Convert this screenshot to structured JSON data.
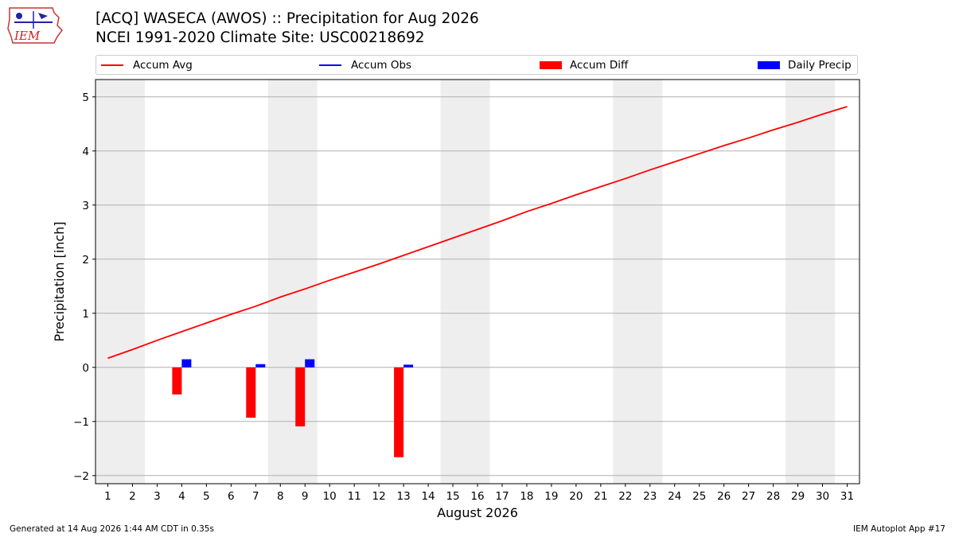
{
  "header": {
    "title_line1": "[ACQ] WASECA (AWOS) :: Precipitation for Aug 2026",
    "title_line2": "NCEI 1991-2020 Climate Site: USC00218692",
    "logo_text": "IEM"
  },
  "legend": {
    "items": [
      {
        "label": "Accum Avg",
        "kind": "line",
        "color": "#ff0000"
      },
      {
        "label": "Accum Obs",
        "kind": "line",
        "color": "#0000ff"
      },
      {
        "label": "Accum Diff",
        "kind": "box",
        "color": "#ff0000"
      },
      {
        "label": "Daily Precip",
        "kind": "box",
        "color": "#0000ff"
      }
    ]
  },
  "footer": {
    "generated": "Generated at 14 Aug 2026 1:44 AM CDT in 0.35s",
    "app": "IEM Autoplot App #17"
  },
  "chart_data": {
    "type": "bar",
    "title": "[ACQ] WASECA (AWOS) :: Precipitation for Aug 2026",
    "xlabel": "August 2026",
    "ylabel": "Precipitation [inch]",
    "x": [
      1,
      2,
      3,
      4,
      5,
      6,
      7,
      8,
      9,
      10,
      11,
      12,
      13,
      14,
      15,
      16,
      17,
      18,
      19,
      20,
      21,
      22,
      23,
      24,
      25,
      26,
      27,
      28,
      29,
      30,
      31
    ],
    "xlim": [
      0.5,
      31.5
    ],
    "ylim": [
      -2.15,
      5.32
    ],
    "yticks": [
      -2,
      -1,
      0,
      1,
      2,
      3,
      4,
      5
    ],
    "ytick_labels": [
      "−2",
      "−1",
      "0",
      "1",
      "2",
      "3",
      "4",
      "5"
    ],
    "weekend_shading": [
      [
        1,
        2
      ],
      [
        8,
        9
      ],
      [
        15,
        16
      ],
      [
        22,
        23
      ],
      [
        29,
        30
      ]
    ],
    "grid": "y",
    "legend_position": "top",
    "series": [
      {
        "name": "Accum Avg",
        "kind": "line",
        "color": "#ff0000",
        "x": [
          1,
          2,
          3,
          4,
          5,
          6,
          7,
          8,
          9,
          10,
          11,
          12,
          13,
          14,
          15,
          16,
          17,
          18,
          19,
          20,
          21,
          22,
          23,
          24,
          25,
          26,
          27,
          28,
          29,
          30,
          31
        ],
        "values": [
          0.17,
          0.33,
          0.5,
          0.66,
          0.82,
          0.98,
          1.13,
          1.3,
          1.45,
          1.61,
          1.76,
          1.91,
          2.07,
          2.23,
          2.39,
          2.55,
          2.71,
          2.88,
          3.03,
          3.19,
          3.34,
          3.49,
          3.65,
          3.8,
          3.95,
          4.1,
          4.24,
          4.39,
          4.53,
          4.68,
          4.82
        ]
      },
      {
        "name": "Accum Diff",
        "kind": "bar",
        "color": "#ff0000",
        "x": [
          4,
          7,
          9,
          13
        ],
        "values": [
          -0.5,
          -0.93,
          -1.09,
          -1.66
        ]
      },
      {
        "name": "Daily Precip",
        "kind": "bar",
        "color": "#0000ff",
        "x": [
          4,
          7,
          9,
          13
        ],
        "values": [
          0.15,
          0.06,
          0.15,
          0.05
        ]
      }
    ]
  }
}
